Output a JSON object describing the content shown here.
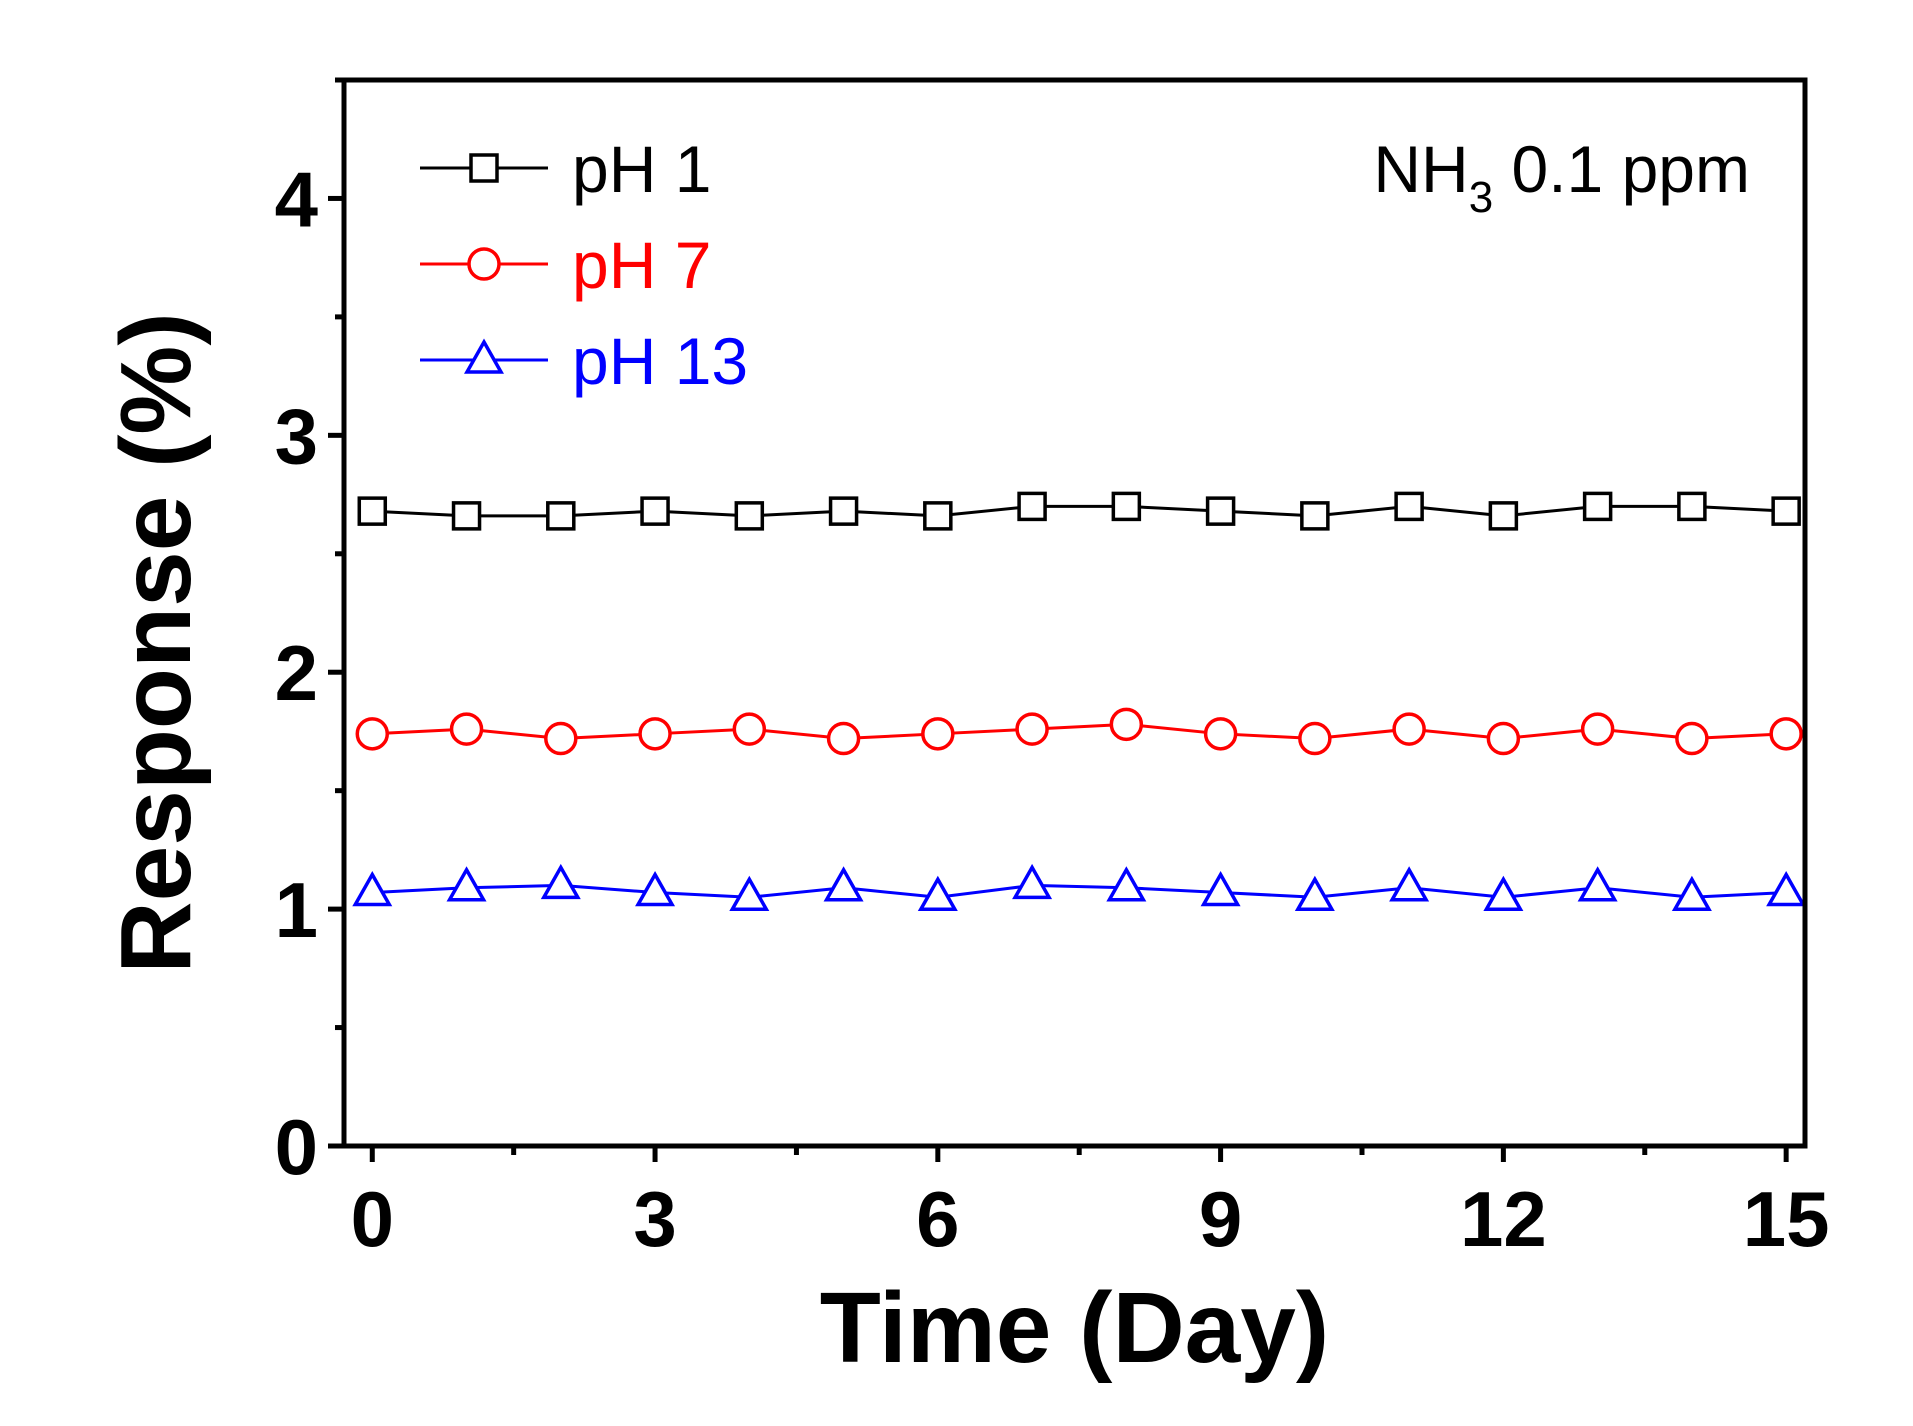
{
  "chart_data": {
    "type": "line",
    "title": "",
    "xlabel": "Time (Day)",
    "ylabel": "Response (%)",
    "xlim": [
      -0.3,
      15.2
    ],
    "ylim": [
      0,
      4.5
    ],
    "xticks": [
      0,
      3,
      6,
      9,
      12,
      15
    ],
    "yticks": [
      0,
      1,
      2,
      3,
      4
    ],
    "grid": false,
    "legend_position": "top-left",
    "x": [
      0,
      1,
      2,
      3,
      4,
      5,
      6,
      7,
      8,
      9,
      10,
      11,
      12,
      13,
      14,
      15
    ],
    "series": [
      {
        "name": "pH 1",
        "color": "#000000",
        "marker": "square",
        "values": [
          2.68,
          2.66,
          2.66,
          2.68,
          2.66,
          2.68,
          2.66,
          2.7,
          2.7,
          2.68,
          2.66,
          2.7,
          2.66,
          2.7,
          2.7,
          2.68
        ]
      },
      {
        "name": "pH 7",
        "color": "#ff0000",
        "marker": "circle",
        "values": [
          1.74,
          1.76,
          1.72,
          1.74,
          1.76,
          1.72,
          1.74,
          1.76,
          1.78,
          1.74,
          1.72,
          1.76,
          1.72,
          1.76,
          1.72,
          1.74
        ]
      },
      {
        "name": "pH 13",
        "color": "#0000ff",
        "marker": "triangle",
        "values": [
          1.07,
          1.09,
          1.1,
          1.07,
          1.05,
          1.09,
          1.05,
          1.1,
          1.09,
          1.07,
          1.05,
          1.09,
          1.05,
          1.09,
          1.05,
          1.07
        ]
      }
    ],
    "annotation": {
      "main": "NH",
      "sub": "3",
      "rest": " 0.1 ppm"
    }
  }
}
